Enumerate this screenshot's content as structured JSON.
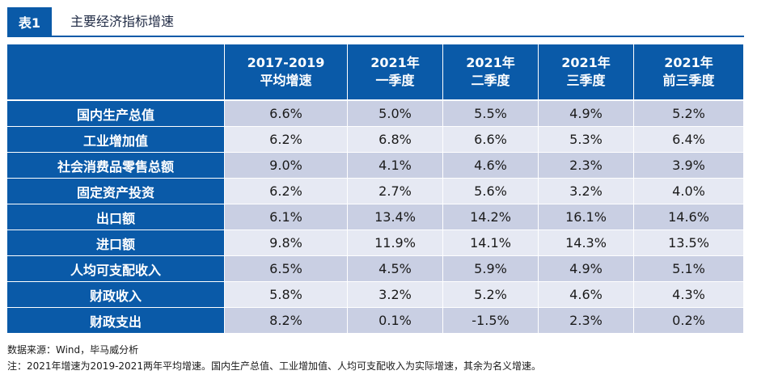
{
  "header": {
    "badge": "表1",
    "title": "主要经济指标增速"
  },
  "table": {
    "columns": [
      {
        "line1": "",
        "line2": ""
      },
      {
        "line1": "2017-2019",
        "line2": "平均增速"
      },
      {
        "line1": "2021年",
        "line2": "一季度"
      },
      {
        "line1": "2021年",
        "line2": "二季度"
      },
      {
        "line1": "2021年",
        "line2": "三季度"
      },
      {
        "line1": "2021年",
        "line2": "前三季度"
      }
    ],
    "rows": [
      {
        "label": "国内生产总值",
        "values": [
          "6.6%",
          "5.0%",
          "5.5%",
          "4.9%",
          "5.2%"
        ]
      },
      {
        "label": "工业增加值",
        "values": [
          "6.2%",
          "6.8%",
          "6.6%",
          "5.3%",
          "6.4%"
        ]
      },
      {
        "label": "社会消费品零售总额",
        "values": [
          "9.0%",
          "4.1%",
          "4.6%",
          "2.3%",
          "3.9%"
        ]
      },
      {
        "label": "固定资产投资",
        "values": [
          "6.2%",
          "2.7%",
          "5.6%",
          "3.2%",
          "4.0%"
        ]
      },
      {
        "label": "出口额",
        "values": [
          "6.1%",
          "13.4%",
          "14.2%",
          "16.1%",
          "14.6%"
        ]
      },
      {
        "label": "进口额",
        "values": [
          "9.8%",
          "11.9%",
          "14.1%",
          "14.3%",
          "13.5%"
        ]
      },
      {
        "label": "人均可支配收入",
        "values": [
          "6.5%",
          "4.5%",
          "5.9%",
          "4.9%",
          "5.1%"
        ]
      },
      {
        "label": "财政收入",
        "values": [
          "5.8%",
          "3.2%",
          "5.2%",
          "4.6%",
          "4.3%"
        ]
      },
      {
        "label": "财政支出",
        "values": [
          "8.2%",
          "0.1%",
          "-1.5%",
          "2.3%",
          "0.2%"
        ]
      }
    ]
  },
  "footer": {
    "source": "数据来源：Wind，毕马威分析",
    "note": "注：2021年增速为2019-2021两年平均增速。国内生产总值、工业增加值、人均可支配收入为实际增速，其余为名义增速。"
  },
  "colors": {
    "accent": "#0a5aa8",
    "row_dark": "#c9cfe3",
    "row_light": "#e6e9f3"
  }
}
